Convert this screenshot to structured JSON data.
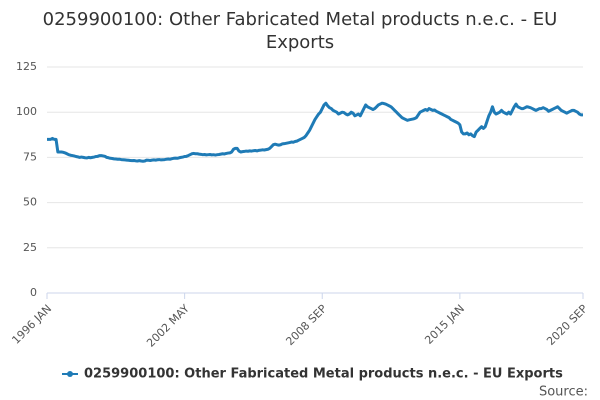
{
  "chart_data": {
    "type": "line",
    "title": "0259900100: Other Fabricated Metal products n.e.c. - EU Exports",
    "source": "Source:",
    "categories": [
      "1996 JAN",
      null,
      null,
      null,
      null,
      null,
      null,
      null,
      null,
      null,
      null,
      null,
      null,
      null,
      null,
      null,
      null,
      null,
      null,
      null,
      null,
      null,
      null,
      null,
      null,
      null,
      null,
      null,
      null,
      null,
      null,
      null,
      null,
      null,
      null,
      null,
      null,
      null,
      null,
      null,
      null,
      null,
      null,
      null,
      null,
      null,
      null,
      null,
      null,
      null,
      null,
      null,
      null,
      null,
      null,
      null,
      null,
      null,
      null,
      null,
      null,
      null,
      null,
      null,
      null,
      null,
      null,
      null,
      null,
      null,
      null,
      null,
      null,
      null,
      null,
      null,
      "2002 MAY",
      null,
      null,
      null,
      null,
      null,
      null,
      null,
      null,
      null,
      null,
      null,
      null,
      null,
      null,
      null,
      null,
      null,
      null,
      null,
      null,
      null,
      null,
      null,
      null,
      null,
      null,
      null,
      null,
      null,
      null,
      null,
      null,
      null,
      null,
      null,
      null,
      null,
      null,
      null,
      null,
      null,
      null,
      null,
      null,
      null,
      null,
      null,
      null,
      null,
      null,
      null,
      null,
      null,
      null,
      null,
      null,
      null,
      null,
      null,
      null,
      null,
      null,
      null,
      null,
      null,
      null,
      null,
      null,
      null,
      null,
      null,
      null,
      null,
      null,
      null,
      "2008 SEP",
      null,
      null,
      null,
      null,
      null,
      null,
      null,
      null,
      null,
      null,
      null,
      null,
      null,
      null,
      null,
      null,
      null,
      null,
      null,
      null,
      null,
      null,
      null,
      null,
      null,
      null,
      null,
      null,
      null,
      null,
      null,
      null,
      null,
      null,
      null,
      null,
      null,
      null,
      null,
      null,
      null,
      null,
      null,
      null,
      null,
      null,
      null,
      null,
      null,
      null,
      null,
      null,
      null,
      null,
      null,
      null,
      null,
      null,
      null,
      null,
      null,
      null,
      null,
      null,
      null,
      null,
      null,
      null,
      null,
      null,
      null,
      null,
      null,
      null,
      null,
      "2015 JAN",
      null,
      null,
      null,
      null,
      null,
      null,
      null,
      null,
      null,
      null,
      null,
      null,
      null,
      null,
      null,
      null,
      null,
      null,
      null,
      null,
      null,
      null,
      null,
      null,
      null,
      null,
      null,
      null,
      null,
      null,
      null,
      null,
      null,
      null,
      null,
      null,
      null,
      null,
      null,
      null,
      null,
      null,
      null,
      null,
      null,
      null,
      null,
      null,
      null,
      null,
      null,
      null,
      null,
      null,
      null,
      null,
      null,
      null,
      null,
      null,
      null,
      null,
      null,
      null,
      null,
      null,
      null,
      "2020 SEP"
    ],
    "series": [
      {
        "name": "0259900100: Other Fabricated Metal products n.e.c. - EU Exports",
        "color": "#1f7bb6",
        "values": [
          85,
          85,
          85,
          85.5,
          85,
          85,
          78,
          78,
          78,
          77.8,
          77.5,
          77,
          76.5,
          76.2,
          76,
          75.8,
          75.5,
          75.3,
          75,
          75.2,
          75,
          74.8,
          74.7,
          75,
          74.8,
          75,
          75.2,
          75.5,
          75.6,
          76,
          76,
          75.8,
          75.6,
          75,
          74.8,
          74.5,
          74.4,
          74.2,
          74.1,
          74,
          74,
          73.8,
          73.7,
          73.6,
          73.5,
          73.4,
          73.3,
          73.2,
          73.3,
          73.1,
          73,
          73.2,
          73,
          72.9,
          73,
          73.5,
          73.4,
          73.3,
          73.5,
          73.6,
          73.5,
          73.7,
          73.8,
          73.6,
          73.7,
          73.8,
          74,
          74.1,
          74,
          74.3,
          74.5,
          74.6,
          74.5,
          74.8,
          75,
          75.2,
          75.5,
          75.6,
          76,
          76.5,
          77,
          77.2,
          77,
          77,
          76.8,
          76.7,
          76.5,
          76.6,
          76.4,
          76.5,
          76.6,
          76.4,
          76.5,
          76.3,
          76.5,
          76.6,
          76.8,
          77,
          76.9,
          77.2,
          77.4,
          77.5,
          78,
          79.5,
          80,
          80,
          78.5,
          78,
          78.2,
          78.3,
          78.5,
          78.4,
          78.6,
          78.5,
          78.7,
          78.8,
          78.6,
          78.9,
          79,
          79.2,
          79.1,
          79.3,
          79.5,
          80,
          81,
          82,
          82.3,
          82,
          81.8,
          82,
          82.5,
          82.6,
          82.8,
          83,
          83.2,
          83.5,
          83.4,
          83.8,
          84,
          84.5,
          85,
          85.5,
          86,
          87,
          88.5,
          90,
          92,
          94,
          96,
          97.5,
          99,
          100,
          102,
          104,
          105,
          103.5,
          102.5,
          102,
          101,
          100.5,
          100,
          99,
          99.5,
          100,
          99.8,
          99,
          98.5,
          99,
          100,
          99.5,
          98,
          98.5,
          99,
          98,
          100,
          102,
          104,
          103,
          102.5,
          102,
          101.5,
          102,
          103,
          104,
          104.5,
          105,
          104.8,
          104.5,
          104,
          103.5,
          103,
          102,
          101,
          100,
          99,
          98,
          97,
          96.5,
          96,
          95.5,
          95.8,
          96,
          96.2,
          96.5,
          97,
          98.5,
          100,
          100.5,
          101,
          101.5,
          101,
          102,
          101.5,
          101,
          101.2,
          100.5,
          100,
          99.5,
          99,
          98.5,
          98,
          97.5,
          97,
          96,
          95.5,
          95,
          94.5,
          94,
          93,
          89,
          88,
          88,
          88.5,
          87.5,
          88,
          87,
          86.5,
          89,
          90,
          91,
          92,
          91,
          92,
          95,
          98,
          100,
          103,
          100,
          99,
          99.5,
          100,
          101,
          100,
          99.5,
          99,
          100,
          99,
          101,
          103,
          104.5,
          103,
          102.5,
          102,
          102,
          102.5,
          103,
          102.8,
          102.5,
          102,
          101.5,
          101,
          101.5,
          102,
          102,
          102.5,
          102,
          101.5,
          100.5,
          101,
          101.5,
          102,
          102.5,
          103,
          102,
          101,
          100.5,
          100,
          99.5,
          100,
          100.5,
          101,
          101,
          100.5,
          100,
          99,
          98.5,
          98.5
        ]
      }
    ],
    "ylim": [
      0,
      125
    ],
    "yticks": [
      0,
      25,
      50,
      75,
      100,
      125
    ],
    "grid": true
  }
}
